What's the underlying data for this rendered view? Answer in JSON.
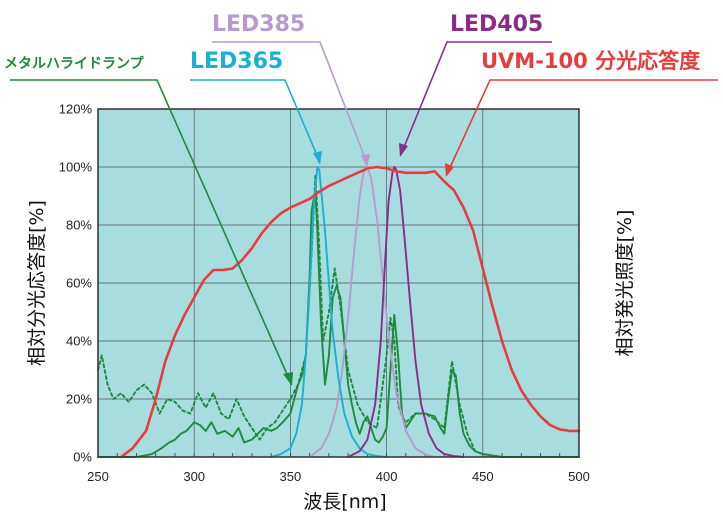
{
  "chart_data": {
    "type": "line",
    "xlabel": "波長[nm]",
    "ylabel_left": "相対分光応答度[%]",
    "ylabel_right": "相対発光照度[%]",
    "xlim": [
      250,
      500
    ],
    "ylim": [
      0,
      120
    ],
    "x_ticks": [
      250,
      300,
      350,
      400,
      450,
      500
    ],
    "y_ticks": [
      0,
      20,
      40,
      60,
      80,
      100,
      120
    ],
    "y_tick_labels": [
      "0%",
      "20%",
      "40%",
      "60%",
      "80%",
      "100%",
      "120%"
    ],
    "grid": true,
    "plot_background": "#a8dde0",
    "series": [
      {
        "name": "UVM-100 分光応答度",
        "color": "#e83c3c",
        "style": "solid",
        "x": [
          262,
          268,
          275,
          280,
          285,
          290,
          295,
          300,
          305,
          310,
          315,
          320,
          325,
          330,
          335,
          340,
          345,
          350,
          355,
          360,
          365,
          370,
          375,
          380,
          385,
          390,
          395,
          400,
          405,
          410,
          415,
          420,
          425,
          430,
          435,
          440,
          445,
          450,
          455,
          460,
          465,
          470,
          475,
          480,
          485,
          490,
          495,
          500
        ],
        "y": [
          0,
          3,
          9,
          20,
          33,
          42,
          49,
          55,
          61,
          64.5,
          64.5,
          65,
          68,
          72,
          77,
          81,
          84,
          86,
          87.5,
          89,
          91.5,
          93.5,
          95,
          96.5,
          98,
          99.5,
          100,
          99.5,
          98.5,
          98,
          98,
          98,
          98.5,
          95,
          92,
          86,
          78,
          65,
          52,
          40,
          30,
          23,
          18,
          14,
          11,
          9.5,
          9,
          9
        ]
      },
      {
        "name": "メタルハライドランプ",
        "color": "#1e8a3c",
        "style": "solid",
        "x": [
          250,
          270,
          278,
          283,
          287,
          290,
          293,
          296,
          300,
          303,
          306,
          309,
          312,
          316,
          320,
          323,
          326,
          330,
          333,
          336,
          340,
          343,
          346,
          350,
          352,
          354,
          356,
          358,
          360,
          361,
          363,
          364,
          366,
          368,
          370,
          372,
          374,
          376,
          378,
          380,
          382,
          384,
          386,
          388,
          390,
          392,
          394,
          396,
          398,
          400,
          402,
          404,
          406,
          408,
          410,
          412,
          415,
          420,
          425,
          428,
          430,
          432,
          434,
          436,
          438,
          440,
          443,
          446,
          450,
          460,
          500
        ],
        "y": [
          0,
          0,
          1,
          3,
          5,
          6,
          8,
          9,
          12,
          11,
          9,
          12,
          8,
          9,
          7,
          10,
          5,
          6,
          8,
          10,
          9,
          10,
          12,
          15,
          20,
          25,
          28,
          35,
          62,
          85,
          92,
          78,
          45,
          25,
          35,
          55,
          59,
          55,
          40,
          25,
          18,
          12,
          8,
          12,
          14,
          10,
          6,
          5,
          7,
          10,
          30,
          49,
          35,
          15,
          10,
          12,
          15,
          15,
          14,
          10,
          8,
          20,
          30,
          28,
          15,
          8,
          4,
          2,
          1,
          0,
          0
        ]
      },
      {
        "name": "メタルハライドランプ",
        "color": "#1e8a3c",
        "style": "dashed",
        "x": [
          250,
          252,
          255,
          258,
          262,
          266,
          270,
          274,
          278,
          282,
          286,
          290,
          294,
          298,
          302,
          306,
          310,
          314,
          318,
          322,
          326,
          330,
          334,
          338,
          342,
          346,
          350,
          354,
          358,
          361,
          363,
          365,
          367,
          370,
          373,
          376,
          380,
          385,
          390,
          395,
          400,
          402,
          404,
          406,
          408,
          410,
          415,
          420,
          425,
          430,
          434,
          438,
          442,
          446,
          450,
          460,
          500
        ],
        "y": [
          30,
          35,
          25,
          20,
          22,
          19,
          23,
          25,
          22,
          15,
          20,
          19,
          16,
          15,
          22,
          17,
          22,
          15,
          13,
          20,
          14,
          10,
          6,
          10,
          12,
          16,
          20,
          25,
          35,
          70,
          97,
          72,
          40,
          50,
          65,
          52,
          30,
          18,
          12,
          10,
          35,
          48,
          40,
          18,
          14,
          12,
          15,
          15,
          13,
          10,
          33,
          18,
          8,
          2,
          1,
          0,
          0
        ]
      },
      {
        "name": "LED365",
        "color": "#1ab0cf",
        "style": "solid",
        "x": [
          340,
          345,
          350,
          353,
          356,
          358,
          360,
          362,
          364,
          365,
          366,
          368,
          370,
          372,
          375,
          378,
          382,
          386,
          390,
          395,
          400
        ],
        "y": [
          0,
          1,
          3,
          8,
          18,
          35,
          58,
          85,
          100,
          99,
          92,
          78,
          60,
          43,
          27,
          15,
          7,
          3,
          1,
          0.3,
          0
        ]
      },
      {
        "name": "LED385",
        "color": "#b79ad0",
        "style": "solid",
        "x": [
          360,
          366,
          370,
          374,
          377,
          380,
          383,
          386,
          388,
          390,
          392,
          395,
          398,
          401,
          405,
          410,
          415,
          420,
          425
        ],
        "y": [
          0,
          3,
          8,
          17,
          30,
          48,
          70,
          90,
          98,
          100,
          96,
          82,
          62,
          42,
          22,
          9,
          3,
          1,
          0
        ]
      },
      {
        "name": "LED405",
        "color": "#8a2b8a",
        "style": "solid",
        "x": [
          380,
          386,
          390,
          394,
          397,
          399,
          401,
          403,
          404,
          405,
          407,
          409,
          412,
          415,
          418,
          422,
          426,
          430,
          435,
          440
        ],
        "y": [
          0,
          2,
          6,
          18,
          40,
          65,
          88,
          98,
          100,
          99,
          92,
          78,
          55,
          33,
          18,
          8,
          3,
          1,
          0.3,
          0
        ]
      }
    ]
  },
  "callouts": {
    "led385": "LED385",
    "led405": "LED405",
    "metal_halide": "メタルハライドランプ",
    "led365": "LED365",
    "uvm100": "UVM-100 分光応答度"
  },
  "colors": {
    "uvm": "#e83c3c",
    "metal": "#1e8a3c",
    "led365": "#1ab0cf",
    "led385": "#b79ad0",
    "led405": "#8a2b8a"
  }
}
